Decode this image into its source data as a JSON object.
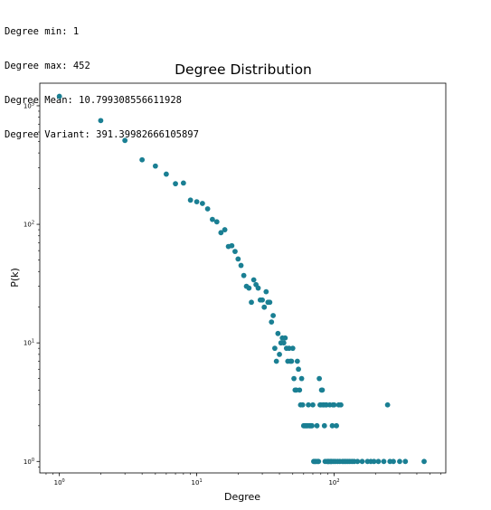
{
  "output_text": [
    "Degree min: 1",
    "Degree max: 452",
    "Degree Mean: 10.799308556611928",
    "Degree Variant: 391.39982666105897"
  ],
  "chart_data": {
    "type": "scatter",
    "title": "Degree Distribution",
    "xlabel": "Degree",
    "ylabel": "P(k)",
    "xscale": "log",
    "yscale": "log",
    "xlim": [
      0.72,
      650
    ],
    "ylim": [
      0.8,
      1550
    ],
    "xticks": [
      {
        "value": 1,
        "base": "10",
        "exp": "0"
      },
      {
        "value": 10,
        "base": "10",
        "exp": "1"
      },
      {
        "value": 100,
        "base": "10",
        "exp": "2"
      }
    ],
    "yticks": [
      {
        "value": 1,
        "base": "10",
        "exp": "0"
      },
      {
        "value": 10,
        "base": "10",
        "exp": "1"
      },
      {
        "value": 100,
        "base": "10",
        "exp": "2"
      },
      {
        "value": 1000,
        "base": "10",
        "exp": "3"
      }
    ],
    "grid": false,
    "marker_color": "#1a7f93",
    "points": [
      [
        1,
        1200
      ],
      [
        2,
        750
      ],
      [
        3,
        510
      ],
      [
        4,
        350
      ],
      [
        5,
        310
      ],
      [
        6,
        265
      ],
      [
        7,
        220
      ],
      [
        8,
        223
      ],
      [
        9,
        160
      ],
      [
        10,
        155
      ],
      [
        11,
        150
      ],
      [
        12,
        135
      ],
      [
        13,
        110
      ],
      [
        14,
        105
      ],
      [
        15,
        85
      ],
      [
        16,
        90
      ],
      [
        17,
        65
      ],
      [
        18,
        66
      ],
      [
        19,
        59
      ],
      [
        20,
        51
      ],
      [
        21,
        45
      ],
      [
        22,
        37
      ],
      [
        23,
        30
      ],
      [
        24,
        29
      ],
      [
        25,
        22
      ],
      [
        26,
        34
      ],
      [
        27,
        31
      ],
      [
        28,
        29
      ],
      [
        29,
        23
      ],
      [
        30,
        23
      ],
      [
        31,
        20
      ],
      [
        32,
        27
      ],
      [
        33,
        22
      ],
      [
        34,
        22
      ],
      [
        35,
        15
      ],
      [
        36,
        17
      ],
      [
        37,
        9
      ],
      [
        38,
        7
      ],
      [
        39,
        12
      ],
      [
        40,
        8
      ],
      [
        41,
        10
      ],
      [
        42,
        11
      ],
      [
        43,
        10
      ],
      [
        44,
        11
      ],
      [
        45,
        9
      ],
      [
        46,
        7
      ],
      [
        47,
        9
      ],
      [
        48,
        7
      ],
      [
        49,
        7
      ],
      [
        50,
        9
      ],
      [
        51,
        5
      ],
      [
        52,
        4
      ],
      [
        53,
        4
      ],
      [
        54,
        7
      ],
      [
        55,
        6
      ],
      [
        56,
        4
      ],
      [
        57,
        3
      ],
      [
        58,
        5
      ],
      [
        59,
        3
      ],
      [
        60,
        2
      ],
      [
        61,
        2
      ],
      [
        62,
        2
      ],
      [
        63,
        2
      ],
      [
        64,
        2
      ],
      [
        65,
        3
      ],
      [
        66,
        2
      ],
      [
        67,
        2
      ],
      [
        68,
        2
      ],
      [
        69,
        2
      ],
      [
        70,
        3
      ],
      [
        71,
        1
      ],
      [
        72,
        1
      ],
      [
        73,
        1
      ],
      [
        74,
        1
      ],
      [
        75,
        2
      ],
      [
        76,
        1
      ],
      [
        77,
        1
      ],
      [
        78,
        5
      ],
      [
        79,
        3
      ],
      [
        80,
        3
      ],
      [
        81,
        4
      ],
      [
        82,
        4
      ],
      [
        83,
        3
      ],
      [
        84,
        3
      ],
      [
        85,
        2
      ],
      [
        86,
        1
      ],
      [
        87,
        3
      ],
      [
        88,
        3
      ],
      [
        89,
        1
      ],
      [
        90,
        1
      ],
      [
        91,
        1
      ],
      [
        92,
        1
      ],
      [
        93,
        3
      ],
      [
        94,
        1
      ],
      [
        95,
        1
      ],
      [
        96,
        1
      ],
      [
        97,
        2
      ],
      [
        98,
        3
      ],
      [
        99,
        1
      ],
      [
        100,
        3
      ],
      [
        102,
        1
      ],
      [
        104,
        2
      ],
      [
        106,
        1
      ],
      [
        108,
        3
      ],
      [
        110,
        1
      ],
      [
        112,
        3
      ],
      [
        115,
        1
      ],
      [
        118,
        1
      ],
      [
        122,
        1
      ],
      [
        126,
        1
      ],
      [
        130,
        1
      ],
      [
        135,
        1
      ],
      [
        140,
        1
      ],
      [
        148,
        1
      ],
      [
        160,
        1
      ],
      [
        175,
        1
      ],
      [
        185,
        1
      ],
      [
        195,
        1
      ],
      [
        210,
        1
      ],
      [
        230,
        1
      ],
      [
        245,
        3
      ],
      [
        255,
        1
      ],
      [
        270,
        1
      ],
      [
        300,
        1
      ],
      [
        330,
        1
      ],
      [
        452,
        1
      ]
    ]
  }
}
